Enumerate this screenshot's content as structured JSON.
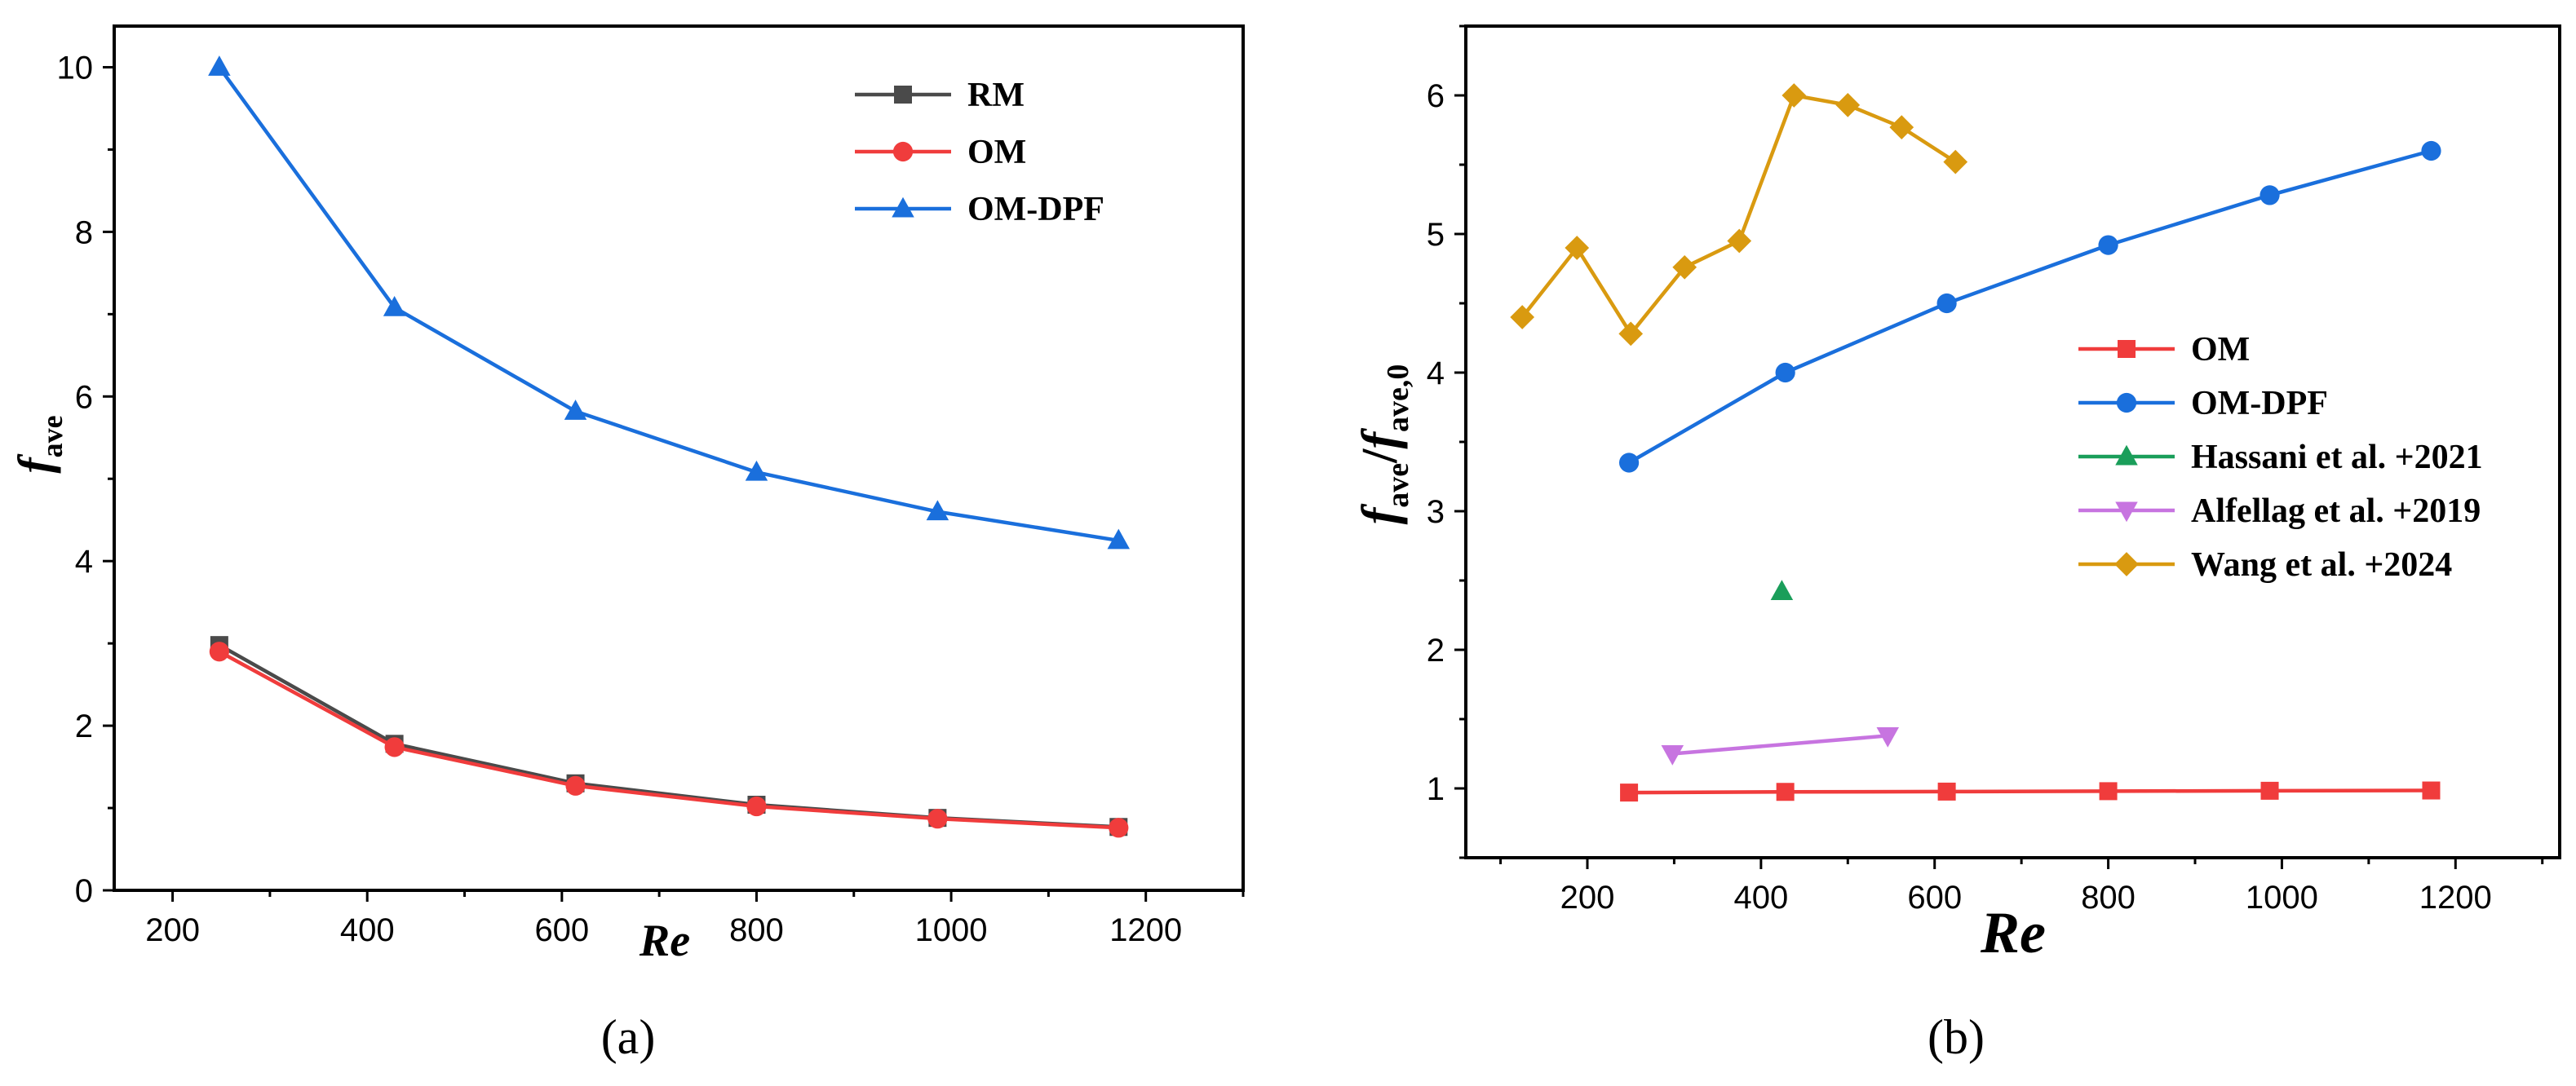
{
  "chart_data": [
    {
      "type": "line",
      "panel_label": "(a)",
      "xlabel": "Re",
      "ylabel": {
        "main": "f",
        "sub": "ave"
      },
      "xlim": [
        140,
        1300
      ],
      "ylim": [
        0,
        10.5
      ],
      "xticks": [
        200,
        400,
        600,
        800,
        1000,
        1200
      ],
      "yticks": [
        0,
        2,
        4,
        6,
        8,
        10
      ],
      "legend_position": "top-right",
      "series": [
        {
          "name": "RM",
          "color": "#4a4a4a",
          "marker": "square",
          "x": [
            248,
            428,
            614,
            800,
            986,
            1172
          ],
          "y": [
            2.98,
            1.78,
            1.3,
            1.04,
            0.88,
            0.77
          ]
        },
        {
          "name": "OM",
          "color": "#f03c3c",
          "marker": "circle",
          "x": [
            248,
            428,
            614,
            800,
            986,
            1172
          ],
          "y": [
            2.9,
            1.74,
            1.27,
            1.02,
            0.87,
            0.76
          ]
        },
        {
          "name": "OM-DPF",
          "color": "#1a6fdc",
          "marker": "triangle-up",
          "x": [
            248,
            428,
            614,
            800,
            986,
            1172
          ],
          "y": [
            10.0,
            7.08,
            5.82,
            5.08,
            4.6,
            4.25
          ]
        }
      ]
    },
    {
      "type": "line",
      "panel_label": "(b)",
      "xlabel": "Re",
      "ylabel": {
        "main": "f",
        "sub": "ave",
        "sep": "/",
        "main2": "f",
        "sub2": "ave,0"
      },
      "xlim": [
        60,
        1320
      ],
      "ylim": [
        0.5,
        6.5
      ],
      "xticks": [
        200,
        400,
        600,
        800,
        1000,
        1200
      ],
      "yticks": [
        1,
        2,
        3,
        4,
        5,
        6
      ],
      "legend_position": "center-right",
      "series": [
        {
          "name": "OM",
          "color": "#f03c3c",
          "marker": "square",
          "x": [
            248,
            428,
            614,
            800,
            986,
            1172
          ],
          "y": [
            0.97,
            0.975,
            0.977,
            0.98,
            0.983,
            0.985
          ]
        },
        {
          "name": "OM-DPF",
          "color": "#1a6fdc",
          "marker": "circle",
          "x": [
            248,
            428,
            614,
            800,
            986,
            1172
          ],
          "y": [
            3.35,
            4.0,
            4.5,
            4.92,
            5.28,
            5.6
          ]
        },
        {
          "name": "Hassani et al. +2021",
          "color": "#1a9e5a",
          "marker": "triangle-up",
          "x": [
            424
          ],
          "y": [
            2.42
          ]
        },
        {
          "name": "Alfellag et al. +2019",
          "color": "#c774e0",
          "marker": "triangle-down",
          "x": [
            298,
            546
          ],
          "y": [
            1.25,
            1.38
          ]
        },
        {
          "name": "Wang et al. +2024",
          "color": "#d99a10",
          "marker": "diamond",
          "x": [
            125,
            188,
            250,
            312,
            375,
            438,
            500,
            562,
            624
          ],
          "y": [
            4.4,
            4.9,
            4.28,
            4.76,
            4.95,
            6.0,
            5.93,
            5.77,
            5.52
          ]
        }
      ]
    }
  ]
}
